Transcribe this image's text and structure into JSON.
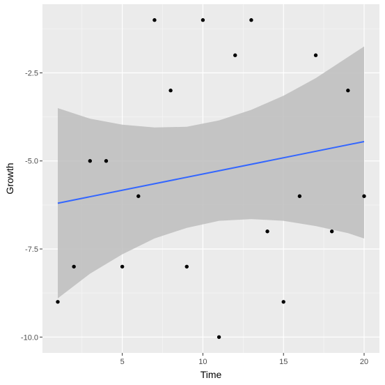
{
  "chart_data": {
    "type": "scatter",
    "title": "",
    "xlabel": "Time",
    "ylabel": "Growth",
    "xlim": [
      0.05,
      20.95
    ],
    "ylim": [
      -10.45,
      -0.55
    ],
    "x_ticks": [
      5,
      10,
      15,
      20
    ],
    "y_ticks": [
      -2.5,
      -5.0,
      -7.5,
      -10.0
    ],
    "x_tick_labels": [
      "5",
      "10",
      "15",
      "20"
    ],
    "y_tick_labels": [
      "-2.5",
      "-5.0",
      "-7.5",
      "-10.0"
    ],
    "grid": true,
    "legend": "none",
    "points": [
      {
        "x": 1,
        "y": -9
      },
      {
        "x": 2,
        "y": -8
      },
      {
        "x": 3,
        "y": -5
      },
      {
        "x": 4,
        "y": -5
      },
      {
        "x": 5,
        "y": -8
      },
      {
        "x": 6,
        "y": -6
      },
      {
        "x": 7,
        "y": -1
      },
      {
        "x": 8,
        "y": -3
      },
      {
        "x": 9,
        "y": -8
      },
      {
        "x": 10,
        "y": -1
      },
      {
        "x": 11,
        "y": -10
      },
      {
        "x": 12,
        "y": -2
      },
      {
        "x": 13,
        "y": -1
      },
      {
        "x": 14,
        "y": -7
      },
      {
        "x": 15,
        "y": -9
      },
      {
        "x": 16,
        "y": -6
      },
      {
        "x": 17,
        "y": -2
      },
      {
        "x": 18,
        "y": -7
      },
      {
        "x": 19,
        "y": -3
      },
      {
        "x": 20,
        "y": -6
      }
    ],
    "trend_line": {
      "method": "linear",
      "start": {
        "x": 1,
        "y": -6.2
      },
      "end": {
        "x": 20,
        "y": -4.45
      },
      "confidence_band": [
        {
          "x": 1,
          "lower": -8.9,
          "upper": -3.5
        },
        {
          "x": 3,
          "lower": -8.2,
          "upper": -3.8
        },
        {
          "x": 5,
          "lower": -7.65,
          "upper": -3.97
        },
        {
          "x": 7,
          "lower": -7.2,
          "upper": -4.05
        },
        {
          "x": 9,
          "lower": -6.9,
          "upper": -4.03
        },
        {
          "x": 11,
          "lower": -6.7,
          "upper": -3.85
        },
        {
          "x": 13,
          "lower": -6.65,
          "upper": -3.55
        },
        {
          "x": 15,
          "lower": -6.7,
          "upper": -3.15
        },
        {
          "x": 17,
          "lower": -6.85,
          "upper": -2.65
        },
        {
          "x": 19,
          "lower": -7.05,
          "upper": -2.05
        },
        {
          "x": 20,
          "lower": -7.2,
          "upper": -1.75
        }
      ]
    },
    "colors": {
      "panel_background": "#ebebeb",
      "grid_major": "#ffffff",
      "grid_minor": "#f5f5f5",
      "points": "#000000",
      "trend_line": "#3366ff",
      "confidence_band": "#bdbdbd"
    }
  }
}
